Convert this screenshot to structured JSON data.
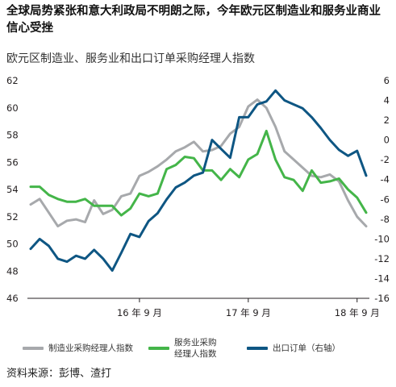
{
  "headline": "全球局势紧张和意大利政局不明朗之际，今年欧元区制造业和服务业商业信心受挫",
  "source": "资料来源：彭博、渣打",
  "chart_data": {
    "type": "line",
    "title": "欧元区制造业、服务业和出口订单采购经理人指数",
    "x_ticks": [
      {
        "label": "16 年 9 月",
        "index": 12
      },
      {
        "label": "17 年 9 月",
        "index": 24
      },
      {
        "label": "18 年 9 月",
        "index": 36
      }
    ],
    "y_left": {
      "min": 46,
      "max": 62,
      "ticks": [
        46,
        48,
        50,
        52,
        54,
        56,
        58,
        60,
        62
      ]
    },
    "y_right": {
      "min": -16,
      "max": 6,
      "ticks": [
        -16,
        -14,
        -12,
        -10,
        -8,
        -6,
        -4,
        -2,
        0,
        2,
        4,
        6
      ]
    },
    "grid": false,
    "legend_position": "bottom",
    "series": [
      {
        "name": "制造业采购经理人指数",
        "color": "#a7a9ac",
        "axis": "left",
        "values": [
          52.9,
          53.3,
          52.3,
          51.3,
          51.7,
          51.8,
          51.6,
          53.2,
          52.2,
          52.5,
          53.5,
          53.7,
          55.0,
          55.3,
          55.7,
          56.2,
          56.8,
          57.1,
          57.5,
          56.8,
          56.9,
          57.2,
          58.1,
          58.6,
          60.1,
          60.6,
          60.0,
          58.6,
          56.8,
          56.2,
          55.6,
          55.0,
          54.9,
          55.1,
          54.6,
          53.2,
          52.0,
          51.3
        ]
      },
      {
        "name": "服务业采购经理人指数",
        "color": "#44b549",
        "axis": "left",
        "values": [
          54.2,
          54.2,
          53.6,
          53.3,
          53.1,
          53.1,
          53.3,
          52.8,
          52.8,
          52.8,
          52.1,
          52.6,
          53.7,
          53.5,
          53.7,
          55.5,
          55.8,
          56.4,
          56.3,
          55.4,
          55.4,
          54.7,
          55.5,
          54.9,
          56.2,
          56.6,
          58.3,
          56.2,
          54.9,
          54.7,
          53.9,
          55.4,
          54.5,
          54.6,
          54.8,
          54.0,
          53.4,
          52.3
        ]
      },
      {
        "name": "出口订单（右轴）",
        "color": "#0e5683",
        "axis": "right",
        "values": [
          -11.0,
          -10.0,
          -10.7,
          -12.0,
          -12.3,
          -11.7,
          -12.0,
          -11.1,
          -12.0,
          -13.2,
          -11.4,
          -9.5,
          -9.8,
          -8.2,
          -7.4,
          -6.0,
          -4.8,
          -4.3,
          -3.6,
          -3.3,
          0.0,
          -0.9,
          -1.8,
          2.3,
          2.3,
          3.6,
          3.9,
          5.0,
          4.0,
          3.6,
          3.2,
          2.3,
          1.2,
          0.0,
          -1.0,
          -1.6,
          -1.1,
          -3.6
        ]
      }
    ]
  }
}
